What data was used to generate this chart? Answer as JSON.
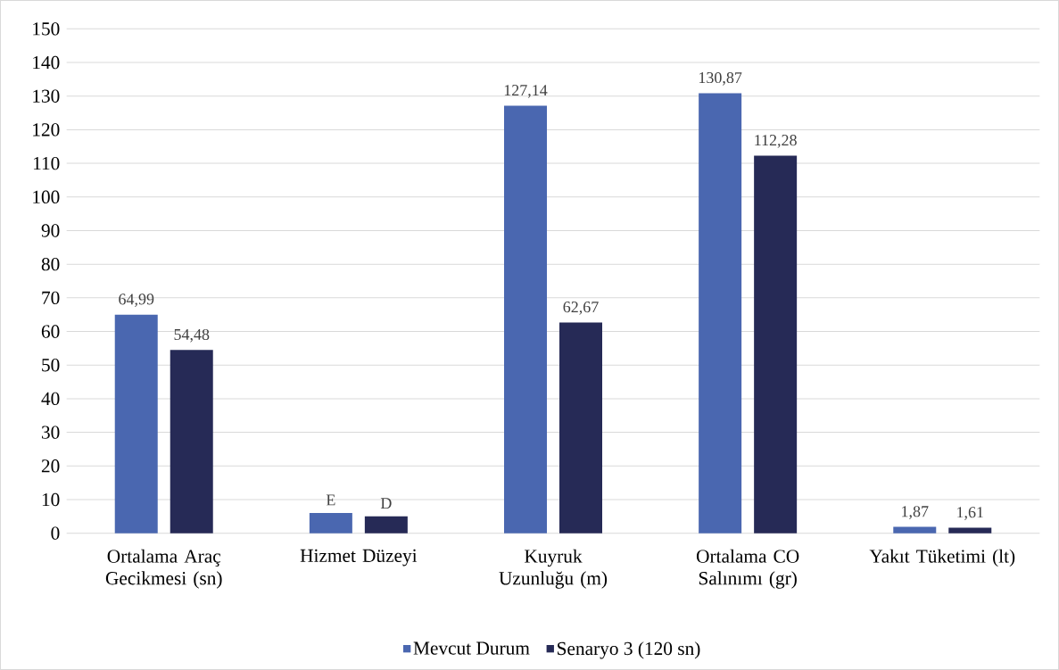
{
  "chart_data": {
    "type": "bar",
    "categories": [
      "Ortalama Araç Gecikmesi (sn)",
      "Hizmet Düzeyi",
      "Kuyruk Uzunluğu (m)",
      "Ortalama CO Salınımı (gr)",
      "Yakıt Tüketimi (lt)"
    ],
    "series": [
      {
        "name": "Mevcut Durum",
        "color": "#4a67b0",
        "values": [
          64.99,
          6,
          127.14,
          130.87,
          1.87
        ],
        "value_labels": [
          "64,99",
          "E",
          "127,14",
          "130,87",
          "1,87"
        ]
      },
      {
        "name": "Senaryo 3 (120 sn)",
        "color": "#262a56",
        "values": [
          54.48,
          5,
          62.67,
          112.28,
          1.61
        ],
        "value_labels": [
          "54,48",
          "D",
          "62,67",
          "112,28",
          "1,61"
        ]
      }
    ],
    "ylim": [
      0,
      150
    ],
    "yticks": [
      0,
      10,
      20,
      30,
      40,
      50,
      60,
      70,
      80,
      90,
      100,
      110,
      120,
      130,
      140,
      150
    ],
    "grid": "y",
    "legend": "bottom"
  }
}
